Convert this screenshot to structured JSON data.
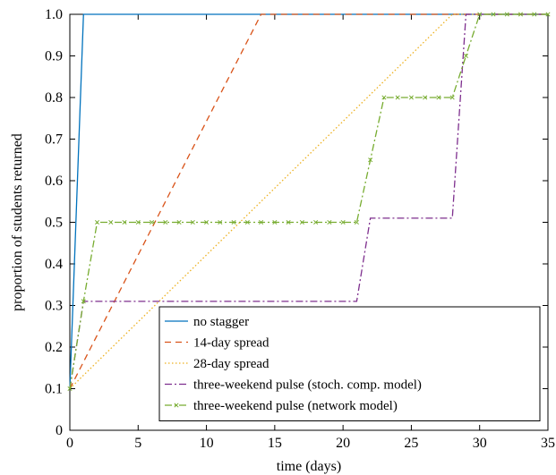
{
  "chart_data": {
    "type": "line",
    "title": "",
    "xlabel": "time (days)",
    "ylabel": "proportion of students returned",
    "xlim": [
      0,
      35
    ],
    "ylim": [
      0,
      1.0
    ],
    "xticks": [
      0,
      5,
      10,
      15,
      20,
      25,
      30,
      35
    ],
    "yticks": [
      0,
      0.1,
      0.2,
      0.3,
      0.4,
      0.5,
      0.6,
      0.7,
      0.8,
      0.9,
      1.0
    ],
    "xtick_labels": [
      "0",
      "5",
      "10",
      "15",
      "20",
      "25",
      "30",
      "35"
    ],
    "ytick_labels": [
      "0",
      "0.1",
      "0.2",
      "0.3",
      "0.4",
      "0.5",
      "0.6",
      "0.7",
      "0.8",
      "0.9",
      "1.0"
    ],
    "grid": false,
    "legend_position": "bottom-right",
    "series": [
      {
        "name": "no stagger",
        "color": "#0072BD",
        "style": "solid",
        "marker": "none",
        "x": [
          0,
          1,
          35
        ],
        "y": [
          0.1,
          1.0,
          1.0
        ]
      },
      {
        "name": "14-day spread",
        "color": "#D95319",
        "style": "dashed",
        "marker": "none",
        "x": [
          0,
          14,
          35
        ],
        "y": [
          0.1,
          1.0,
          1.0
        ]
      },
      {
        "name": "28-day spread",
        "color": "#EDB120",
        "style": "dotted",
        "marker": "none",
        "x": [
          0,
          28,
          35
        ],
        "y": [
          0.1,
          1.0,
          1.0
        ]
      },
      {
        "name": "three-weekend pulse (stoch. comp. model)",
        "color": "#7E2F8E",
        "style": "dashdot",
        "marker": "none",
        "x": [
          0,
          1,
          21,
          22,
          28,
          29,
          35
        ],
        "y": [
          0.1,
          0.31,
          0.31,
          0.51,
          0.51,
          1.0,
          1.0
        ]
      },
      {
        "name": "three-weekend pulse (network model)",
        "color": "#77AC30",
        "style": "dashdot",
        "marker": "x",
        "x": [
          0,
          1,
          2,
          3,
          4,
          5,
          6,
          7,
          8,
          9,
          10,
          11,
          12,
          13,
          14,
          15,
          16,
          17,
          18,
          19,
          20,
          21,
          22,
          23,
          24,
          25,
          26,
          27,
          28,
          29,
          30,
          31,
          32,
          33,
          34,
          35
        ],
        "y": [
          0.1,
          0.31,
          0.5,
          0.5,
          0.5,
          0.5,
          0.5,
          0.5,
          0.5,
          0.5,
          0.5,
          0.5,
          0.5,
          0.5,
          0.5,
          0.5,
          0.5,
          0.5,
          0.5,
          0.5,
          0.5,
          0.5,
          0.65,
          0.8,
          0.8,
          0.8,
          0.8,
          0.8,
          0.8,
          0.9,
          1.0,
          1.0,
          1.0,
          1.0,
          1.0,
          1.0
        ]
      }
    ]
  }
}
